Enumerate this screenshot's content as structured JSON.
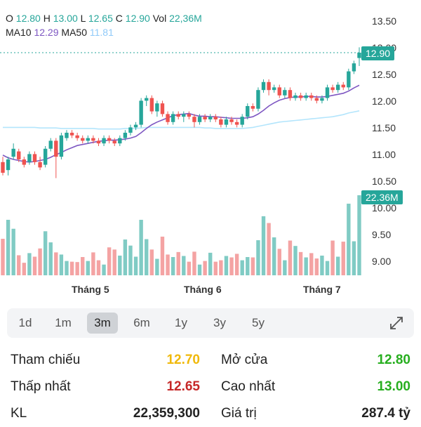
{
  "header": {
    "o_label": "O",
    "o_value": "12.80",
    "h_label": "H",
    "h_value": "13.00",
    "l_label": "L",
    "l_value": "12.65",
    "c_label": "C",
    "c_value": "12.90",
    "vol_label": "Vol",
    "vol_value": "22,36M",
    "ma10_label": "MA10",
    "ma10_value": "12.29",
    "ma50_label": "MA50",
    "ma50_value": "11.81"
  },
  "badges": {
    "price": "12.90",
    "volume": "22.36M"
  },
  "y_axis": [
    "13.50",
    "13.00",
    "12.50",
    "12.00",
    "11.50",
    "11.00",
    "10.50",
    "10.00",
    "9.50",
    "9.00"
  ],
  "x_axis": [
    "Tháng 5",
    "Tháng 6",
    "Tháng 7"
  ],
  "ranges": [
    {
      "label": "1d",
      "active": false
    },
    {
      "label": "1m",
      "active": false
    },
    {
      "label": "3m",
      "active": true
    },
    {
      "label": "6m",
      "active": false
    },
    {
      "label": "1y",
      "active": false
    },
    {
      "label": "3y",
      "active": false
    },
    {
      "label": "5y",
      "active": false
    }
  ],
  "stats": {
    "tham_chieu_label": "Tham chiếu",
    "tham_chieu_value": "12.70",
    "mo_cua_label": "Mở cửa",
    "mo_cua_value": "12.80",
    "thap_nhat_label": "Thấp nhất",
    "thap_nhat_value": "12.65",
    "cao_nhat_label": "Cao nhất",
    "cao_nhat_value": "13.00",
    "kl_label": "KL",
    "kl_value": "22,359,300",
    "gia_tri_label": "Giá trị",
    "gia_tri_value": "287.4 tỷ"
  },
  "colors": {
    "up": "#26a69a",
    "down": "#ef5350",
    "ma10": "#7e57c2",
    "ma50": "#b3e5fc",
    "ref": "#f0b90b",
    "low": "#c62828",
    "high": "#27ae1f"
  },
  "chart_data": {
    "type": "candlestick",
    "y_range": [
      10.5,
      13.5
    ],
    "candles": [
      [
        10.85,
        10.65,
        10.95,
        10.6
      ],
      [
        10.7,
        10.9,
        10.95,
        10.6
      ],
      [
        10.95,
        11.1,
        11.2,
        10.9
      ],
      [
        11.05,
        10.9,
        11.1,
        10.85
      ],
      [
        10.9,
        10.8,
        10.95,
        10.75
      ],
      [
        10.85,
        11.0,
        11.05,
        10.8
      ],
      [
        11.0,
        10.85,
        11.05,
        10.8
      ],
      [
        10.85,
        10.75,
        10.95,
        10.7
      ],
      [
        10.8,
        11.1,
        11.15,
        10.75
      ],
      [
        11.1,
        11.25,
        11.3,
        11.05
      ],
      [
        11.25,
        10.95,
        11.3,
        10.55
      ],
      [
        10.95,
        11.35,
        11.4,
        10.9
      ],
      [
        11.3,
        11.4,
        11.45,
        11.25
      ],
      [
        11.4,
        11.35,
        11.45,
        11.3
      ],
      [
        11.35,
        11.3,
        11.4,
        11.25
      ],
      [
        11.3,
        11.25,
        11.35,
        11.2
      ],
      [
        11.25,
        11.3,
        11.35,
        11.2
      ],
      [
        11.3,
        11.25,
        11.35,
        11.2
      ],
      [
        11.25,
        11.2,
        11.3,
        11.15
      ],
      [
        11.2,
        11.3,
        11.35,
        11.15
      ],
      [
        11.3,
        11.25,
        11.35,
        11.2
      ],
      [
        11.25,
        11.2,
        11.3,
        11.15
      ],
      [
        11.2,
        11.3,
        11.35,
        11.15
      ],
      [
        11.3,
        11.4,
        11.45,
        11.25
      ],
      [
        11.4,
        11.5,
        11.55,
        11.35
      ],
      [
        11.5,
        11.55,
        11.6,
        11.45
      ],
      [
        11.55,
        12.0,
        12.05,
        11.5
      ],
      [
        12.0,
        12.05,
        12.1,
        11.9
      ],
      [
        12.05,
        11.8,
        12.1,
        11.75
      ],
      [
        11.8,
        11.95,
        12.0,
        11.7
      ],
      [
        11.95,
        11.75,
        12.0,
        11.7
      ],
      [
        11.75,
        11.6,
        11.8,
        11.55
      ],
      [
        11.6,
        11.75,
        11.8,
        11.55
      ],
      [
        11.75,
        11.7,
        11.8,
        11.65
      ],
      [
        11.7,
        11.75,
        11.8,
        11.6
      ],
      [
        11.75,
        11.7,
        11.8,
        11.65
      ],
      [
        11.7,
        11.6,
        11.75,
        11.5
      ],
      [
        11.6,
        11.7,
        11.75,
        11.55
      ],
      [
        11.7,
        11.65,
        11.75,
        11.6
      ],
      [
        11.65,
        11.7,
        11.75,
        11.6
      ],
      [
        11.7,
        11.65,
        11.75,
        11.6
      ],
      [
        11.65,
        11.55,
        11.7,
        11.5
      ],
      [
        11.55,
        11.65,
        11.7,
        11.5
      ],
      [
        11.65,
        11.6,
        11.7,
        11.55
      ],
      [
        11.6,
        11.55,
        11.65,
        11.5
      ],
      [
        11.55,
        11.7,
        11.75,
        11.5
      ],
      [
        11.7,
        11.9,
        11.95,
        11.65
      ],
      [
        11.9,
        11.85,
        11.95,
        11.8
      ],
      [
        11.85,
        12.2,
        12.25,
        11.8
      ],
      [
        12.2,
        12.35,
        12.4,
        12.15
      ],
      [
        12.35,
        12.2,
        12.4,
        12.1
      ],
      [
        12.2,
        12.25,
        12.3,
        12.15
      ],
      [
        12.25,
        12.1,
        12.3,
        12.05
      ],
      [
        12.1,
        12.2,
        12.25,
        12.05
      ],
      [
        12.2,
        12.05,
        12.25,
        12.0
      ],
      [
        12.05,
        12.1,
        12.15,
        12.0
      ],
      [
        12.1,
        12.05,
        12.15,
        12.0
      ],
      [
        12.05,
        12.1,
        12.15,
        12.0
      ],
      [
        12.1,
        12.05,
        12.15,
        12.0
      ],
      [
        12.05,
        12.0,
        12.1,
        11.95
      ],
      [
        12.0,
        12.05,
        12.1,
        11.95
      ],
      [
        12.05,
        12.25,
        12.3,
        12.0
      ],
      [
        12.25,
        12.2,
        12.3,
        12.15
      ],
      [
        12.2,
        12.3,
        12.35,
        12.15
      ],
      [
        12.3,
        12.25,
        12.35,
        12.2
      ],
      [
        12.25,
        12.55,
        12.6,
        12.2
      ],
      [
        12.55,
        12.7,
        12.75,
        12.5
      ],
      [
        12.8,
        12.9,
        13.0,
        12.65
      ]
    ],
    "volumes_m": [
      10.2,
      15.5,
      13,
      5.6,
      3.5,
      6.2,
      5.2,
      7.5,
      12.3,
      9.2,
      6.4,
      5.8,
      4.0,
      3.8,
      3.7,
      5.1,
      4.0,
      6.4,
      4.2,
      3.0,
      7.8,
      7.2,
      5.5,
      10.0,
      8.3,
      5.2,
      15.5,
      10.1,
      7.2,
      4.6,
      10.8,
      5.8,
      5.1,
      6.5,
      5.4,
      3.8,
      6.6,
      3.0,
      4.0,
      6.3,
      3.8,
      4.2,
      5.4,
      5.0,
      6.0,
      4.2,
      5.1,
      5.0,
      9.8,
      16.5,
      14.6,
      10.6,
      7.4,
      4.2,
      9.7,
      8.2,
      6.5,
      5.0,
      6.2,
      4.7,
      5.5,
      4.0,
      9.7,
      5.2,
      9.4,
      20.0,
      9.5,
      22.36
    ],
    "ma10": [
      10.98,
      10.93,
      10.9,
      10.88,
      10.86,
      10.85,
      10.86,
      10.88,
      10.9,
      10.94,
      10.99,
      11.03,
      11.08,
      11.12,
      11.16,
      11.18,
      11.2,
      11.22,
      11.24,
      11.25,
      11.26,
      11.26,
      11.27,
      11.28,
      11.3,
      11.33,
      11.4,
      11.48,
      11.55,
      11.6,
      11.64,
      11.68,
      11.72,
      11.74,
      11.75,
      11.76,
      11.73,
      11.71,
      11.71,
      11.7,
      11.7,
      11.69,
      11.68,
      11.67,
      11.67,
      11.67,
      11.68,
      11.7,
      11.75,
      11.82,
      11.9,
      11.96,
      12.01,
      12.04,
      12.06,
      12.07,
      12.07,
      12.08,
      12.08,
      12.07,
      12.07,
      12.08,
      12.1,
      12.12,
      12.14,
      12.18,
      12.24,
      12.29
    ],
    "ma50": [
      11.5,
      11.5,
      11.5,
      11.5,
      11.5,
      11.5,
      11.5,
      11.49,
      11.49,
      11.49,
      11.49,
      11.48,
      11.48,
      11.48,
      11.48,
      11.48,
      11.48,
      11.48,
      11.47,
      11.47,
      11.47,
      11.47,
      11.47,
      11.48,
      11.48,
      11.48,
      11.49,
      11.5,
      11.5,
      11.5,
      11.5,
      11.5,
      11.5,
      11.5,
      11.5,
      11.5,
      11.5,
      11.5,
      11.49,
      11.49,
      11.48,
      11.48,
      11.48,
      11.48,
      11.48,
      11.48,
      11.49,
      11.5,
      11.52,
      11.54,
      11.56,
      11.58,
      11.6,
      11.61,
      11.62,
      11.63,
      11.64,
      11.65,
      11.66,
      11.67,
      11.68,
      11.69,
      11.7,
      11.72,
      11.74,
      11.77,
      11.79,
      11.81
    ]
  }
}
